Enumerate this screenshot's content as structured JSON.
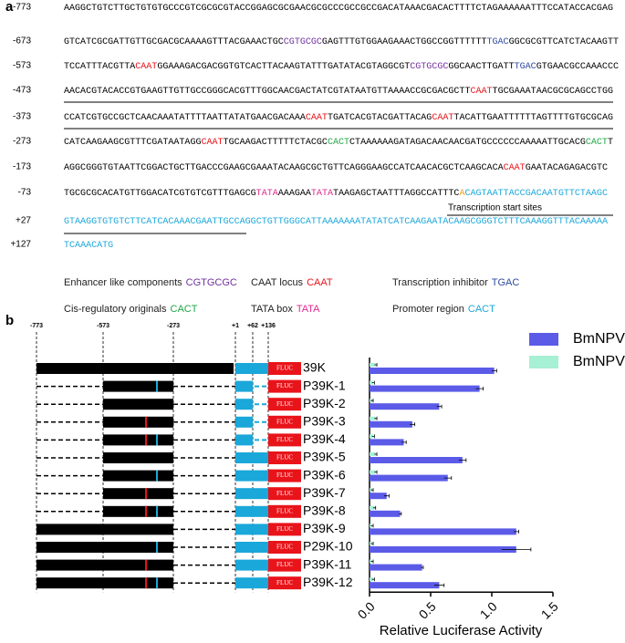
{
  "panel_a": {
    "label": "a",
    "lines": [
      {
        "position": "-773",
        "segments": [
          {
            "text": "AAGGCTGTCTTGCTGTGTGCCCGTCGCGCGTACCGGAGCGCGAACGCGCCCGCCGCCGACATAAACGACACTTTTCTAGAAAAAATTTCCATACCACGAG",
            "color": "#000000"
          }
        ]
      },
      {
        "position": "-673",
        "segments": [
          {
            "text": "GTCATCGCGATTGTTGCGACGCAAAAGTTTACGAAACTGC",
            "color": "#000000"
          },
          {
            "text": "CGTGCGC",
            "color": "#7030a0"
          },
          {
            "text": "GAGTTTGTGGAAGAAACTGGCCGGTTTTTT",
            "color": "#000000"
          },
          {
            "text": "TGAC",
            "color": "#2e4a9e"
          },
          {
            "text": "GGCGCGTTCATCTACAAGTT",
            "color": "#000000"
          }
        ]
      },
      {
        "position": "-573",
        "segments": [
          {
            "text": "TCCATTTACGTTA",
            "color": "#000000"
          },
          {
            "text": "CAAT",
            "color": "#e8141a"
          },
          {
            "text": "GGAAAGACGACGGTGTCACTTACAAGTATTTGATATACGTAGGCGT",
            "color": "#000000"
          },
          {
            "text": "CGTGCGC",
            "color": "#7030a0"
          },
          {
            "text": "GGCAACTTGATT",
            "color": "#000000"
          },
          {
            "text": "TGAC",
            "color": "#2e4a9e"
          },
          {
            "text": "GTGAACGCCAAACCC",
            "color": "#000000"
          }
        ]
      },
      {
        "position": "-473",
        "segments": [
          {
            "text": "AACACGTACACCGTGAAGTTGTTGCCGGGCACGTTTGGCAACGACTATCGTATAATGTTAAAACCGCGACGCTT",
            "color": "#000000"
          },
          {
            "text": "CAAT",
            "color": "#e8141a"
          },
          {
            "text": "TGCGAAATAACGCGCAGCCTGG",
            "color": "#000000"
          }
        ]
      },
      {
        "position": "-373",
        "segments": [
          {
            "text": "CCATCGTGCCGCTCAACAAATATTTTAATTATATGAACGACAAA",
            "color": "#000000"
          },
          {
            "text": "CAAT",
            "color": "#e8141a"
          },
          {
            "text": "TGATCACGTACGATTACAG",
            "color": "#000000"
          },
          {
            "text": "CAAT",
            "color": "#e8141a"
          },
          {
            "text": "TACATTGAATTTTTTAGTTTTGTGCGCAG",
            "color": "#000000"
          }
        ]
      },
      {
        "position": "-273",
        "segments": [
          {
            "text": "CATCAAGAAGCGTTTCGATAATAGG",
            "color": "#000000"
          },
          {
            "text": "CAAT",
            "color": "#e8141a"
          },
          {
            "text": "TGCAAGACTTTTTCTACGC",
            "color": "#000000"
          },
          {
            "text": "CACT",
            "color": "#21a644"
          },
          {
            "text": "CTAAAAAAGATAGACAACAACGATGCCCCCCAAAAATTGCACG",
            "color": "#000000"
          },
          {
            "text": "CACT",
            "color": "#21a644"
          },
          {
            "text": "T",
            "color": "#000000"
          }
        ]
      },
      {
        "position": "-173",
        "segments": [
          {
            "text": "AGGCGGGTGTAATTCGGACTGCTTGACCCGAAGCGAAATACAAGCGCTGTTCAGGGAAGCCATCAACACGCTCAAGCACA",
            "color": "#000000"
          },
          {
            "text": "CAAT",
            "color": "#e8141a"
          },
          {
            "text": "GAATACAGAGACGTC",
            "color": "#000000"
          }
        ]
      },
      {
        "position": "-73",
        "segments": [
          {
            "text": "TGCGCGCACATGTTGGACATCGTGTCGTTTGAGCG",
            "color": "#000000"
          },
          {
            "text": "TATA",
            "color": "#e0288f"
          },
          {
            "text": "AAAGAA",
            "color": "#000000"
          },
          {
            "text": "TATA",
            "color": "#e0288f"
          },
          {
            "text": "TAAGAGCTAATTTAGGCCATTTC",
            "color": "#000000"
          },
          {
            "text": "A",
            "color": "#f39c12"
          },
          {
            "text": "CAGTAATTACCGACAATGTTCTAAGC",
            "color": "#1aa7d9"
          }
        ]
      },
      {
        "position": "+27",
        "segments": [
          {
            "text": "GTAAGGTGTGTCTTCATCACAAACGAATTGCCAGGCTGTTGGGCATTAAAAAAATATATCATCAAGAATACAAGCGGGTCTTTCAAAGGTTTACAAAAA",
            "color": "#1aa7d9"
          }
        ]
      },
      {
        "position": "+127",
        "segments": [
          {
            "text": "TCAAACATG",
            "color": "#1aa7d9"
          }
        ]
      }
    ],
    "tss_label": "Transcription start sites",
    "legend": [
      {
        "label": "Enhancer like components",
        "motif": "CGTGCGC",
        "color": "#7030a0"
      },
      {
        "label": "CAAT locus",
        "motif": "CAAT",
        "color": "#e8141a"
      },
      {
        "label": "Transcription inhibitor",
        "motif": "TGAC",
        "color": "#2e4a9e"
      },
      {
        "label": "Cis-regulatory originals",
        "motif": "CACT",
        "color": "#21a644"
      },
      {
        "label": "TATA box",
        "motif": "TATA",
        "color": "#e0288f"
      },
      {
        "label": "Promoter region",
        "motif": "CACT",
        "color": "#1aa7d9"
      }
    ]
  },
  "panel_b": {
    "label": "b",
    "positions": [
      "-773",
      "-573",
      "-273",
      "+1",
      "+62",
      "+136"
    ],
    "reporter": "FLUC",
    "constructs": [
      {
        "upstream": true,
        "caat": false,
        "tgac": false,
        "middle": true,
        "full_promoter": true
      },
      {
        "upstream": false,
        "caat": false,
        "tgac": true,
        "middle": false,
        "full_promoter": false
      },
      {
        "upstream": false,
        "caat": false,
        "tgac": false,
        "middle": false,
        "full_promoter": false
      },
      {
        "upstream": false,
        "caat": true,
        "tgac": false,
        "middle": false,
        "full_promoter": false
      },
      {
        "upstream": false,
        "caat": true,
        "tgac": true,
        "middle": false,
        "full_promoter": false
      },
      {
        "upstream": false,
        "caat": false,
        "tgac": false,
        "middle": false,
        "full_promoter": true
      },
      {
        "upstream": false,
        "caat": false,
        "tgac": true,
        "middle": false,
        "full_promoter": true
      },
      {
        "upstream": false,
        "caat": true,
        "tgac": false,
        "middle": false,
        "full_promoter": true
      },
      {
        "upstream": false,
        "caat": true,
        "tgac": true,
        "middle": false,
        "full_promoter": true
      },
      {
        "upstream": true,
        "caat": false,
        "tgac": false,
        "middle": false,
        "full_promoter": true
      },
      {
        "upstream": true,
        "caat": false,
        "tgac": true,
        "middle": false,
        "full_promoter": true
      },
      {
        "upstream": true,
        "caat": true,
        "tgac": false,
        "middle": false,
        "full_promoter": true
      },
      {
        "upstream": true,
        "caat": true,
        "tgac": true,
        "middle": false,
        "full_promoter": true
      }
    ]
  },
  "chart_data": {
    "type": "hbar",
    "x_label": "Relative Luciferase Activity",
    "categories": [
      "39K",
      "P39K-1",
      "P39K-2",
      "P39K-3",
      "P39K-4",
      "P39K-5",
      "P39K-6",
      "P39K-7",
      "P39K-8",
      "P39K-9",
      "P29K-10",
      "P39K-11",
      "P39K-12"
    ],
    "series": [
      {
        "name": "BmNPV(+)",
        "color": "#5b5be8",
        "values": [
          1.02,
          0.9,
          0.57,
          0.35,
          0.28,
          0.76,
          0.64,
          0.14,
          0.25,
          1.2,
          1.2,
          0.43,
          0.57
        ],
        "errors": [
          0.02,
          0.03,
          0.02,
          0.02,
          0.02,
          0.03,
          0.03,
          0.02,
          0.01,
          0.02,
          0.12,
          0.01,
          0.04
        ]
      },
      {
        "name": "BmNPV(-)",
        "color": "#a6f0d6",
        "values": [
          0.05,
          0.03,
          0.02,
          0.05,
          0.03,
          0.05,
          0.05,
          0.02,
          0.04,
          0.02,
          0.02,
          0.02,
          0.03
        ],
        "errors": [
          0.01,
          0.01,
          0.01,
          0.01,
          0.01,
          0.01,
          0.01,
          0.01,
          0.01,
          0.01,
          0.01,
          0.01,
          0.01
        ]
      }
    ],
    "xlim": [
      0,
      1.5
    ],
    "xticks": [
      {
        "value": 0,
        "label": "0.0"
      },
      {
        "value": 0.5,
        "label": "0.5"
      },
      {
        "value": 1,
        "label": "1.0"
      },
      {
        "value": 1.5,
        "label": "1.5"
      }
    ]
  }
}
